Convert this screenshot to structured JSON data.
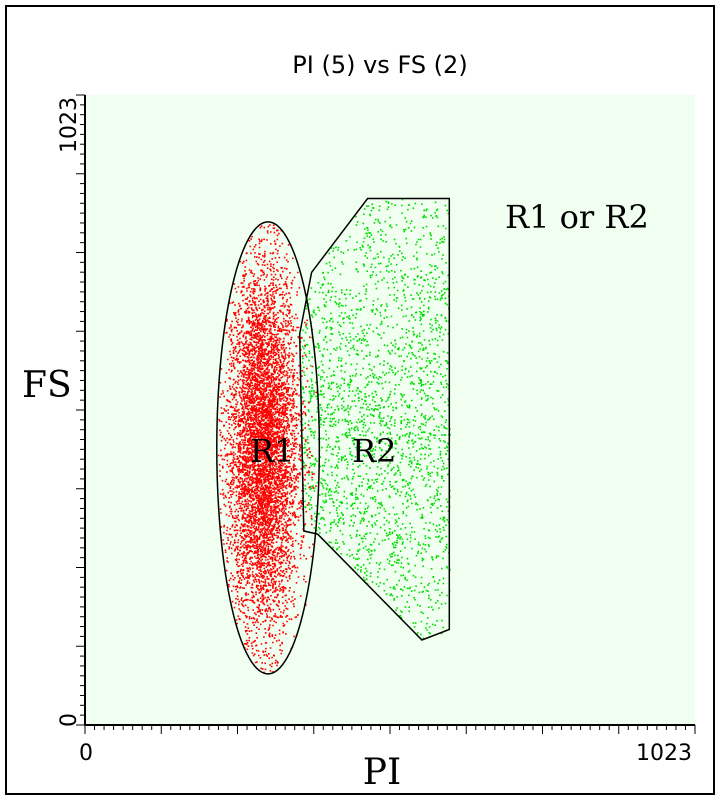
{
  "chart_data": {
    "type": "scatter",
    "title": "PI (5) vs FS (2)",
    "xlabel": "PI",
    "ylabel": "FS",
    "xlim": [
      0,
      1023
    ],
    "ylim": [
      0,
      1023
    ],
    "x_ticks": [
      "0",
      "1023"
    ],
    "y_ticks": [
      "0",
      "1023"
    ],
    "annotation": "R1 or R2",
    "colors": {
      "R1": "#ff0000",
      "R2": "#00dd00",
      "outline": "#000000"
    },
    "regions": [
      {
        "label": "R1",
        "shape": "ellipse",
        "center": [
          307,
          450
        ],
        "radii": [
          86,
          367
        ]
      },
      {
        "label": "R2",
        "shape": "polygon",
        "vertices": [
          [
            474,
            855
          ],
          [
            611,
            855
          ],
          [
            611,
            155
          ],
          [
            565,
            138
          ],
          [
            390,
            310
          ],
          [
            367,
            315
          ],
          [
            360,
            635
          ],
          [
            380,
            735
          ]
        ]
      }
    ]
  }
}
